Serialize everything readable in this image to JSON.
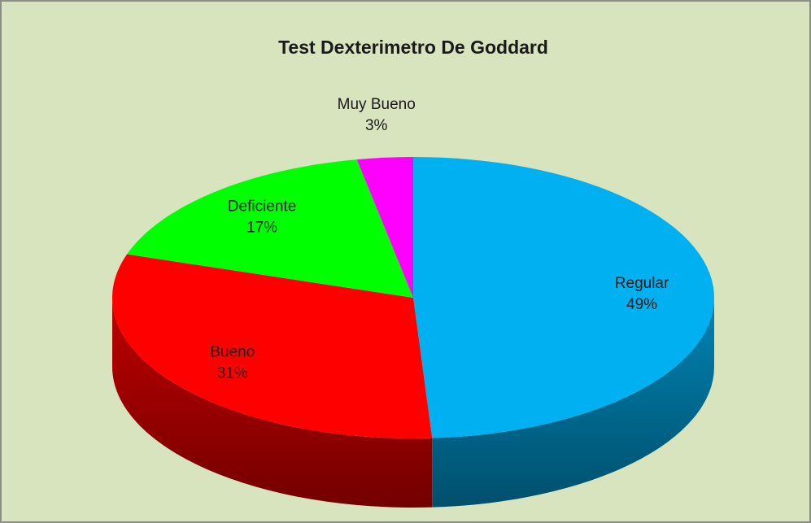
{
  "chart_data": {
    "type": "pie",
    "title": "Test Dexterimetro De Goddard",
    "categories": [
      "Regular",
      "Bueno",
      "Deficiente",
      "Muy Bueno"
    ],
    "values": [
      49,
      31,
      17,
      3
    ],
    "value_labels": [
      "49%",
      "31%",
      "17%",
      "3%"
    ],
    "colors": [
      "#00b0f0",
      "#ff0000",
      "#00ff00",
      "#ff00ff"
    ]
  }
}
